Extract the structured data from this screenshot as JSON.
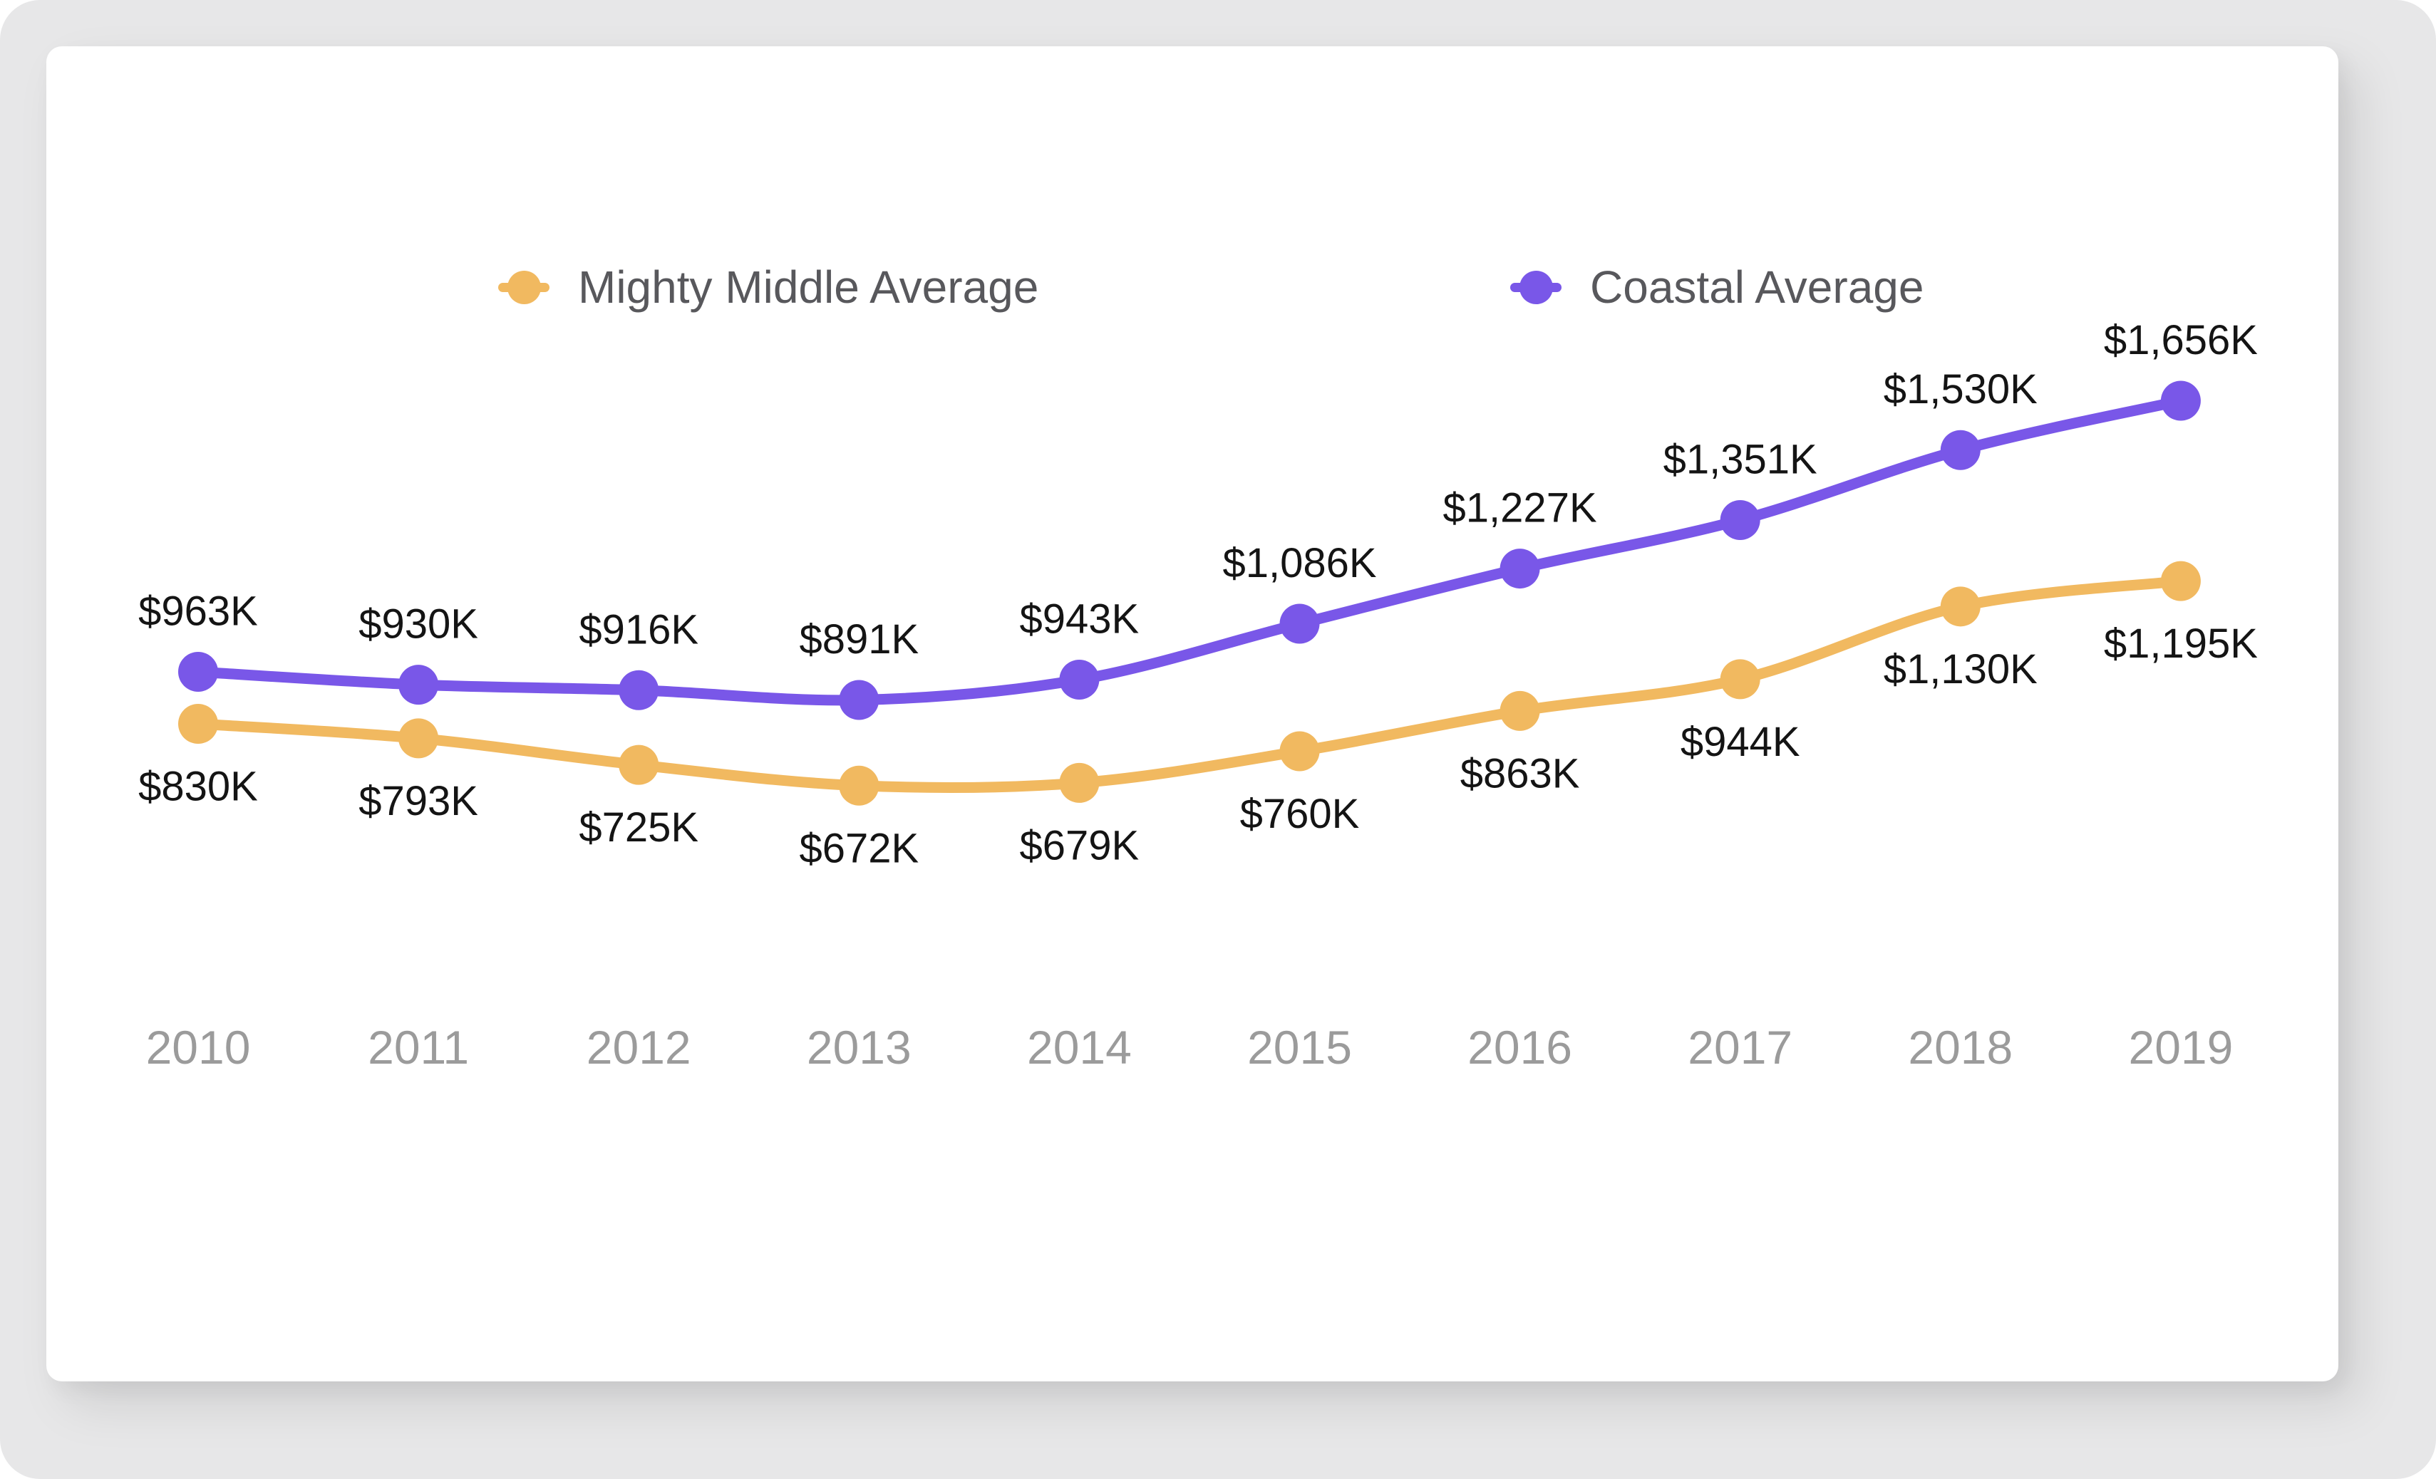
{
  "page": {
    "frame_background": "#e7e7e8",
    "card_background": "#ffffff"
  },
  "legend": [
    {
      "label": "Mighty Middle Average",
      "color": "#F1B960"
    },
    {
      "label": "Coastal Average",
      "color": "#7957E8"
    }
  ],
  "chart_data": {
    "type": "line",
    "x": [
      "2010",
      "2011",
      "2012",
      "2013",
      "2014",
      "2015",
      "2016",
      "2017",
      "2018",
      "2019"
    ],
    "series": [
      {
        "name": "Mighty Middle Average",
        "color": "#F1B960",
        "values": [
          830,
          793,
          725,
          672,
          679,
          760,
          863,
          944,
          1130,
          1195
        ],
        "labels": [
          "$830K",
          "$793K",
          "$725K",
          "$672K",
          "$679K",
          "$760K",
          "$863K",
          "$944K",
          "$1,130K",
          "$1,195K"
        ]
      },
      {
        "name": "Coastal Average",
        "color": "#7957E8",
        "values": [
          963,
          930,
          916,
          891,
          943,
          1086,
          1227,
          1351,
          1530,
          1656
        ],
        "labels": [
          "$963K",
          "$930K",
          "$916K",
          "$891K",
          "$943K",
          "$1,086K",
          "$1,227K",
          "$1,351K",
          "$1,530K",
          "$1,656K"
        ]
      }
    ],
    "title": "",
    "xlabel": "",
    "ylabel": "",
    "ylim": [
      500,
      1800
    ],
    "units": "USD thousands",
    "grid": false,
    "y_axis_visible": false,
    "legend_position": "top",
    "point_style": "filled-circle",
    "line_style": "smooth"
  }
}
